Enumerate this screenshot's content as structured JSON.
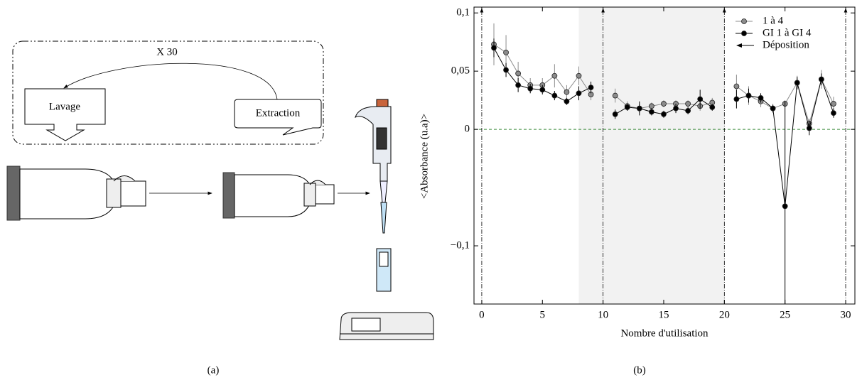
{
  "panel_a": {
    "repeat": "X 30",
    "boxes": [
      "Lavage",
      "Extraction"
    ],
    "caption": "(a)"
  },
  "chart_data": {
    "type": "line",
    "caption": "(b)",
    "x_label": "Nombre d'utilisation",
    "y_label": "<Absorbance (u.a)>",
    "x": [
      1,
      2,
      3,
      4,
      5,
      6,
      7,
      8,
      9,
      10,
      11,
      12,
      13,
      14,
      15,
      16,
      17,
      18,
      19,
      20,
      21,
      22,
      23,
      24,
      25,
      26,
      27,
      28,
      29
    ],
    "series": [
      {
        "name": "1 à 4",
        "color": "#8c8c8c",
        "values": [
          0.073,
          0.066,
          0.048,
          0.038,
          0.038,
          0.046,
          0.032,
          0.046,
          0.03,
          null,
          0.029,
          0.02,
          0.018,
          0.02,
          0.022,
          0.022,
          0.022,
          0.02,
          0.023,
          null,
          0.037,
          0.029,
          0.024,
          0.018,
          0.022,
          0.04,
          0.005,
          0.043,
          0.022
        ],
        "errors": [
          0.018,
          0.015,
          0.01,
          0.006,
          0.006,
          0.01,
          0.006,
          0.008,
          0.005,
          null,
          0.006,
          0.004,
          0.004,
          0.003,
          0.003,
          0.003,
          0.003,
          0.004,
          0.004,
          null,
          0.01,
          0.008,
          0.005,
          0.004,
          0.003,
          0.006,
          0.004,
          0.008,
          0.006
        ]
      },
      {
        "name": "GI 1 à GI 4",
        "color": "#000000",
        "values": [
          0.07,
          0.051,
          0.038,
          0.035,
          0.034,
          0.029,
          0.024,
          0.031,
          0.036,
          null,
          0.013,
          0.019,
          0.018,
          0.015,
          0.013,
          0.018,
          0.016,
          0.026,
          0.019,
          null,
          0.026,
          0.029,
          0.027,
          0.018,
          -0.066,
          0.04,
          0.001,
          0.043,
          0.014
        ],
        "errors": [
          0.008,
          0.006,
          0.006,
          0.004,
          0.004,
          0.004,
          0.003,
          0.006,
          0.005,
          null,
          0.004,
          0.003,
          0.006,
          0.003,
          0.003,
          0.004,
          0.003,
          0.008,
          0.003,
          null,
          0.008,
          0.006,
          0.004,
          0.003,
          0.09,
          0.005,
          0.006,
          0.005,
          0.004
        ]
      }
    ],
    "deposition": {
      "name": "Déposition",
      "x": [
        0,
        10,
        20,
        30
      ]
    },
    "shaded_range": [
      8,
      20
    ],
    "reference_line": {
      "y": 0,
      "color": "#3a8a3a"
    },
    "xlim": [
      -0.64,
      30.76
    ],
    "xticks": [
      0,
      5,
      10,
      15,
      20,
      25,
      30
    ],
    "ylim": [
      -0.15,
      0.105
    ],
    "yticks": [
      {
        "value": 0.1,
        "label": "0,1"
      },
      {
        "value": 0.05,
        "label": "0,05"
      },
      0,
      {
        "value": -0.1,
        "label": "−0,1"
      }
    ],
    "legend": "upper right"
  }
}
